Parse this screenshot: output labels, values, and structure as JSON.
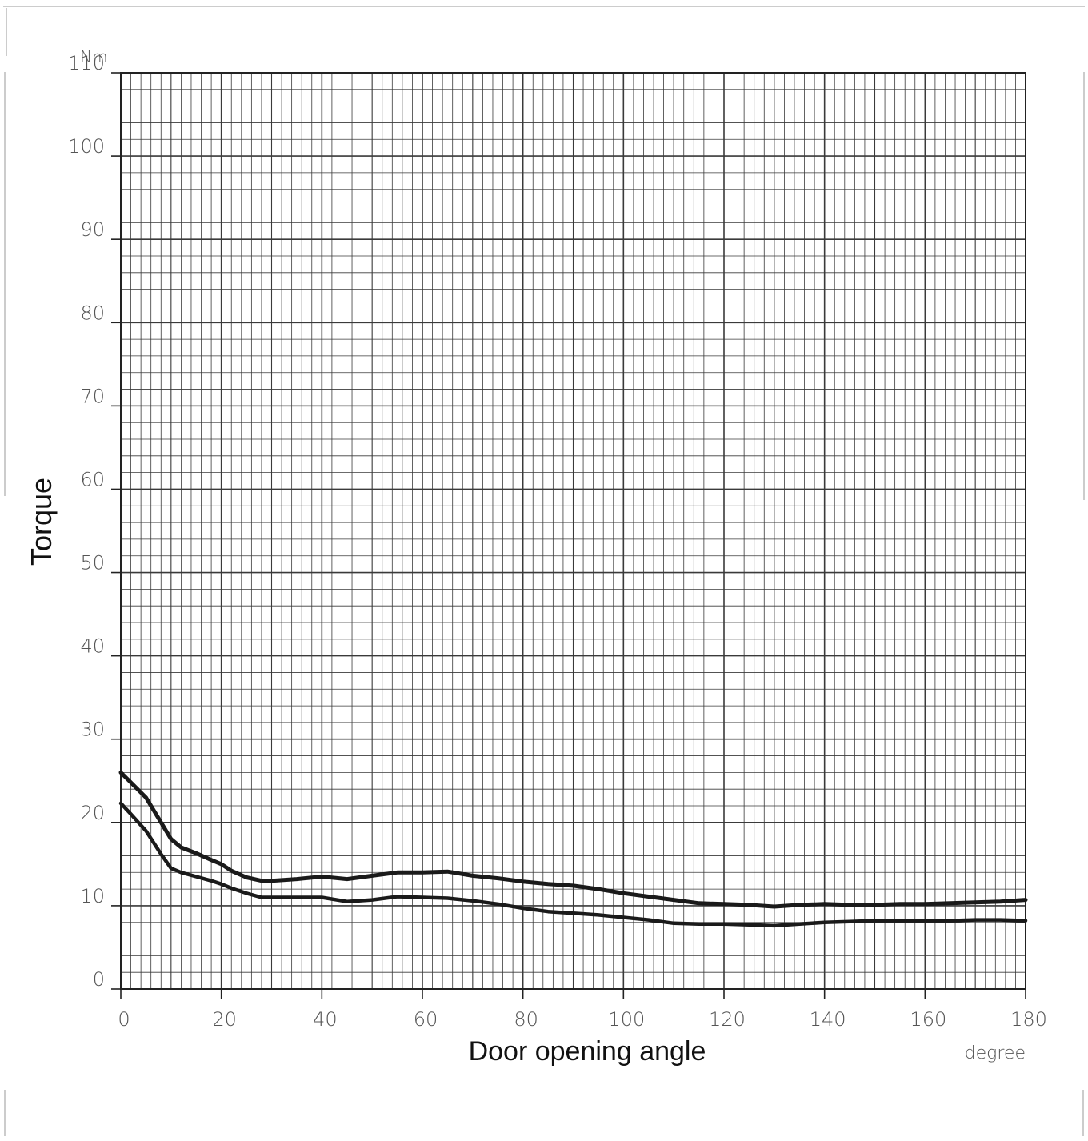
{
  "chart_data": {
    "type": "line",
    "title": "",
    "xlabel": "Door opening angle",
    "ylabel": "Torque",
    "x_unit": "degree",
    "y_unit": "Nm",
    "xlim": [
      0,
      180
    ],
    "ylim": [
      0,
      110
    ],
    "x_ticks": [
      0,
      20,
      40,
      60,
      80,
      100,
      120,
      140,
      160,
      180
    ],
    "y_ticks": [
      0,
      10,
      20,
      30,
      40,
      50,
      60,
      70,
      80,
      90,
      100,
      110
    ],
    "grid": true,
    "line_color": "#1a1a1a",
    "grid_color": "#3a3a3a",
    "series": [
      {
        "x": [
          0,
          2,
          5,
          8,
          10,
          12,
          15,
          18,
          20,
          22,
          25,
          28,
          30,
          35,
          40,
          45,
          50,
          55,
          60,
          65,
          70,
          75,
          80,
          85,
          90,
          95,
          100,
          105,
          110,
          115,
          120,
          125,
          130,
          135,
          140,
          145,
          150,
          155,
          160,
          165,
          170,
          175,
          180
        ],
        "values": [
          26,
          24.8,
          23,
          20,
          18,
          17,
          16.3,
          15.5,
          15,
          14.2,
          13.4,
          13,
          13,
          13.2,
          13.5,
          13.2,
          13.6,
          14,
          14,
          14.1,
          13.6,
          13.3,
          12.9,
          12.6,
          12.4,
          12,
          11.5,
          11.1,
          10.7,
          10.3,
          10.2,
          10.1,
          9.9,
          10.1,
          10.2,
          10.1,
          10.1,
          10.2,
          10.2,
          10.3,
          10.4,
          10.5,
          10.7
        ]
      },
      {
        "x": [
          0,
          2,
          5,
          8,
          10,
          12,
          15,
          18,
          20,
          22,
          25,
          28,
          30,
          35,
          40,
          45,
          50,
          55,
          60,
          65,
          70,
          75,
          80,
          85,
          90,
          95,
          100,
          105,
          110,
          115,
          120,
          125,
          130,
          135,
          140,
          145,
          150,
          155,
          160,
          165,
          170,
          175,
          180
        ],
        "values": [
          22.3,
          21,
          19,
          16.2,
          14.5,
          14,
          13.5,
          13,
          12.6,
          12.1,
          11.5,
          11,
          11,
          11,
          11,
          10.5,
          10.7,
          11.1,
          11,
          10.9,
          10.6,
          10.2,
          9.7,
          9.3,
          9.1,
          8.9,
          8.6,
          8.3,
          7.9,
          7.8,
          7.8,
          7.7,
          7.6,
          7.8,
          8,
          8.1,
          8.2,
          8.2,
          8.2,
          8.2,
          8.3,
          8.3,
          8.2
        ]
      }
    ]
  }
}
